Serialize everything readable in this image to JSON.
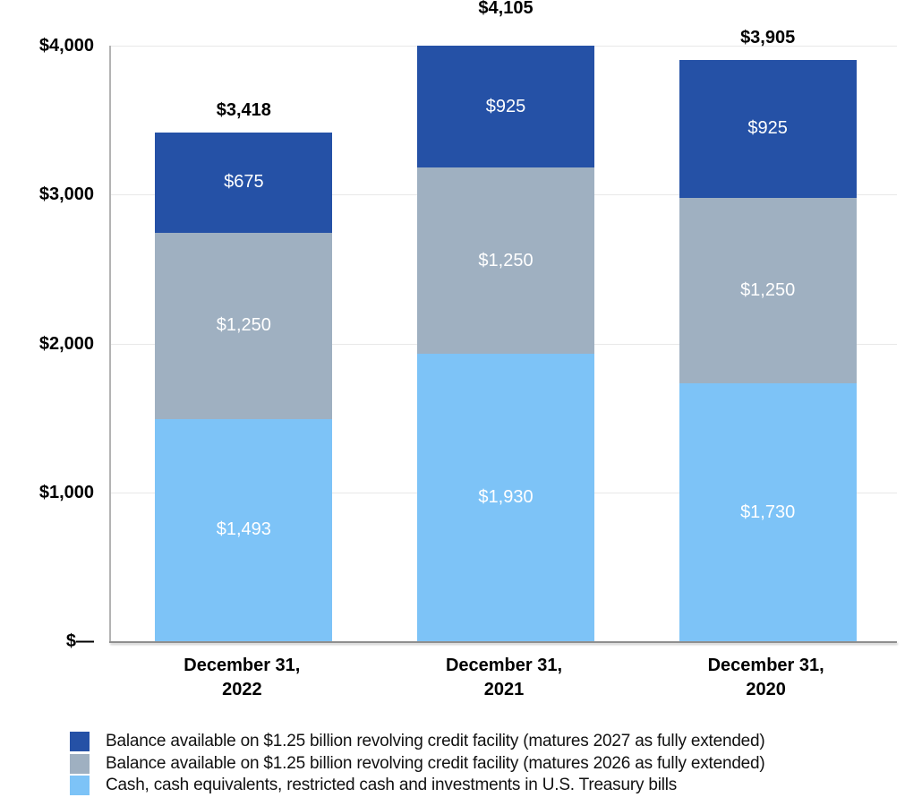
{
  "colors": {
    "facility_2027": "#2551a6",
    "facility_2026": "#9fb0c1",
    "cash": "#7dc3f7",
    "gridline": "#e8e8e8",
    "axis_line": "#8f8f8f",
    "total_label_text": "#000000",
    "segment_label_text": "#ffffff"
  },
  "chart_data": {
    "type": "bar",
    "stacked": true,
    "title": "",
    "xlabel": "",
    "ylabel": "",
    "grid": true,
    "legend_position": "bottom-left",
    "categories": [
      "December 31,\n2022",
      "December 31,\n2021",
      "December 31,\n2020"
    ],
    "series": [
      {
        "name": "Cash, cash equivalents, restricted cash and investments in U.S. Treasury bills",
        "color_key": "cash",
        "values": [
          1493,
          1930,
          1730
        ],
        "value_labels": [
          "$1,493",
          "$1,930",
          "$1,730"
        ]
      },
      {
        "name": "Balance available on $1.25 billion revolving credit facility (matures 2026 as fully extended)",
        "color_key": "facility_2026",
        "values": [
          1250,
          1250,
          1250
        ],
        "value_labels": [
          "$1,250",
          "$1,250",
          "$1,250"
        ]
      },
      {
        "name": "Balance available on $1.25 billion revolving credit facility (matures 2027 as fully extended)",
        "color_key": "facility_2027",
        "values": [
          675,
          925,
          925
        ],
        "value_labels": [
          "$675",
          "$925",
          "$925"
        ]
      }
    ],
    "totals": [
      {
        "value": 3418,
        "label": "$3,418"
      },
      {
        "value": 4105,
        "label": "$4,105"
      },
      {
        "value": 3905,
        "label": "$3,905"
      }
    ],
    "y_axis": {
      "min": 0,
      "max": 4000,
      "ticks": [
        {
          "value": 0,
          "label": "$—"
        },
        {
          "value": 1000,
          "label": "$1,000"
        },
        {
          "value": 2000,
          "label": "$2,000"
        },
        {
          "value": 3000,
          "label": "$3,000"
        },
        {
          "value": 4000,
          "label": "$4,000"
        }
      ]
    },
    "legend": [
      {
        "color_key": "facility_2027",
        "label": "Balance available on $1.25 billion revolving credit facility (matures 2027 as fully extended)"
      },
      {
        "color_key": "facility_2026",
        "label": "Balance available on $1.25 billion revolving credit facility (matures 2026 as fully extended)"
      },
      {
        "color_key": "cash",
        "label": "Cash, cash equivalents, restricted cash and investments in U.S. Treasury bills"
      }
    ]
  }
}
